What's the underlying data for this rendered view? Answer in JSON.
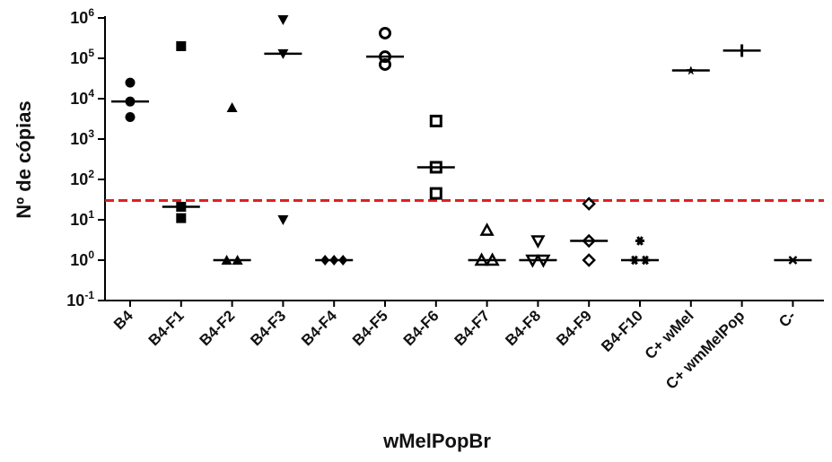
{
  "chart_data": {
    "type": "scatter",
    "title": "",
    "xlabel": "wMelPopBr",
    "ylabel": "Nº de cópias",
    "yscale": "log",
    "ylim_exponents": [
      -1,
      6
    ],
    "y_ticks": [
      {
        "base": "10",
        "exp": "-1"
      },
      {
        "base": "10",
        "exp": "0"
      },
      {
        "base": "10",
        "exp": "1"
      },
      {
        "base": "10",
        "exp": "2"
      },
      {
        "base": "10",
        "exp": "3"
      },
      {
        "base": "10",
        "exp": "4"
      },
      {
        "base": "10",
        "exp": "5"
      },
      {
        "base": "10",
        "exp": "6"
      }
    ],
    "categories": [
      "B4",
      "B4-F1",
      "B4-F2",
      "B4-F3",
      "B4-F4",
      "B4-F5",
      "B4-F6",
      "B4-F7",
      "B4-F8",
      "B4-F9",
      "B4-F10",
      "C+ wMel",
      "C+ wmMelPop",
      "C-"
    ],
    "series": [
      {
        "category": "B4",
        "marker": "circle-filled",
        "values": [
          25000,
          8500,
          3500
        ],
        "median": 8500
      },
      {
        "category": "B4-F1",
        "marker": "square-filled",
        "values": [
          200000,
          21,
          11
        ],
        "median": 21
      },
      {
        "category": "B4-F2",
        "marker": "triangle-filled",
        "values": [
          6000,
          1,
          1
        ],
        "median": 1
      },
      {
        "category": "B4-F3",
        "marker": "triangle-down-filled",
        "values": [
          900000,
          130000,
          10
        ],
        "median": 130000
      },
      {
        "category": "B4-F4",
        "marker": "diamond-filled",
        "values": [
          1,
          1,
          1
        ],
        "median": 1
      },
      {
        "category": "B4-F5",
        "marker": "circle-open",
        "values": [
          420000,
          110000,
          70000
        ],
        "median": 110000
      },
      {
        "category": "B4-F6",
        "marker": "square-open",
        "values": [
          2800,
          200,
          45
        ],
        "median": 200
      },
      {
        "category": "B4-F7",
        "marker": "triangle-open",
        "values": [
          5.5,
          1,
          1
        ],
        "median": 1
      },
      {
        "category": "B4-F8",
        "marker": "triangle-down-open",
        "values": [
          3,
          1,
          1
        ],
        "median": 1
      },
      {
        "category": "B4-F9",
        "marker": "diamond-open",
        "values": [
          25,
          3,
          1
        ],
        "median": 3
      },
      {
        "category": "B4-F10",
        "marker": "asterisk",
        "values": [
          3,
          1,
          1
        ],
        "median": 1
      },
      {
        "category": "C+ wMel",
        "marker": "star",
        "values": [
          50000
        ],
        "median": 50000
      },
      {
        "category": "C+ wmMelPop",
        "marker": "plus",
        "values": [
          155000
        ],
        "median": 155000
      },
      {
        "category": "C-",
        "marker": "x",
        "values": [
          1
        ],
        "median": 1
      }
    ],
    "threshold": {
      "value": 30,
      "color": "#e02020",
      "style": "dashed"
    },
    "marker_color": "#000000",
    "grid": false,
    "legend": "none"
  }
}
